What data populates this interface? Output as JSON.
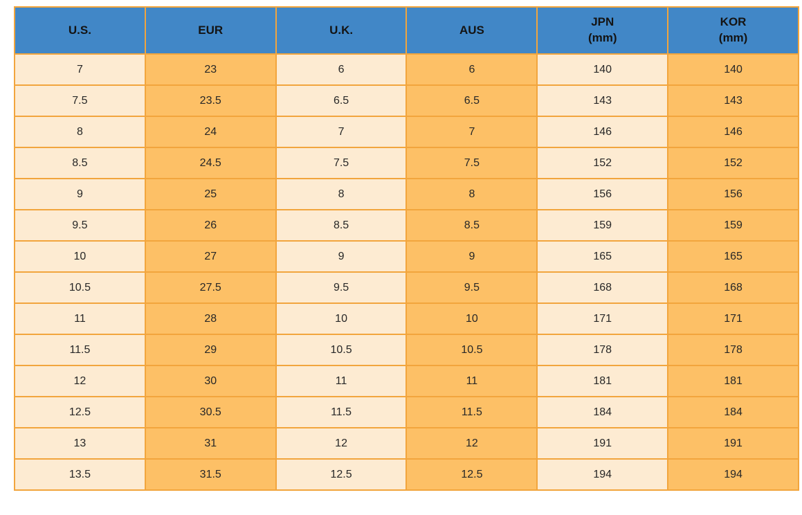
{
  "colors": {
    "header_bg": "#4187c7",
    "column_light_bg": "#fdebd2",
    "column_orange_bg": "#fdc066",
    "grid_border": "#f2a53d",
    "header_text": "#141414",
    "cell_text": "#272727",
    "page_bg": "#ffffff"
  },
  "chart_data": {
    "type": "table",
    "title": "",
    "headers": [
      {
        "label": "U.S.",
        "sublabel": ""
      },
      {
        "label": "EUR",
        "sublabel": ""
      },
      {
        "label": "U.K.",
        "sublabel": ""
      },
      {
        "label": "AUS",
        "sublabel": ""
      },
      {
        "label": "JPN",
        "sublabel": "(mm)"
      },
      {
        "label": "KOR",
        "sublabel": "(mm)"
      }
    ],
    "rows": [
      [
        "7",
        "23",
        "6",
        "6",
        "140",
        "140"
      ],
      [
        "7.5",
        "23.5",
        "6.5",
        "6.5",
        "143",
        "143"
      ],
      [
        "8",
        "24",
        "7",
        "7",
        "146",
        "146"
      ],
      [
        "8.5",
        "24.5",
        "7.5",
        "7.5",
        "152",
        "152"
      ],
      [
        "9",
        "25",
        "8",
        "8",
        "156",
        "156"
      ],
      [
        "9.5",
        "26",
        "8.5",
        "8.5",
        "159",
        "159"
      ],
      [
        "10",
        "27",
        "9",
        "9",
        "165",
        "165"
      ],
      [
        "10.5",
        "27.5",
        "9.5",
        "9.5",
        "168",
        "168"
      ],
      [
        "11",
        "28",
        "10",
        "10",
        "171",
        "171"
      ],
      [
        "11.5",
        "29",
        "10.5",
        "10.5",
        "178",
        "178"
      ],
      [
        "12",
        "30",
        "11",
        "11",
        "181",
        "181"
      ],
      [
        "12.5",
        "30.5",
        "11.5",
        "11.5",
        "184",
        "184"
      ],
      [
        "13",
        "31",
        "12",
        "12",
        "191",
        "191"
      ],
      [
        "13.5",
        "31.5",
        "12.5",
        "12.5",
        "194",
        "194"
      ]
    ]
  }
}
